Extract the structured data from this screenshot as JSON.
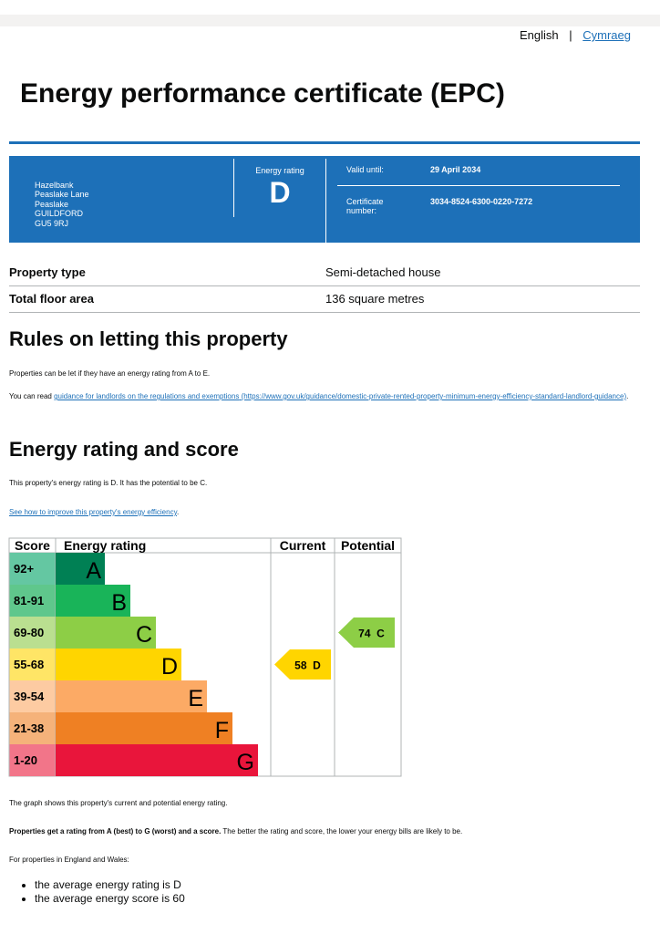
{
  "language": {
    "english": "English",
    "welsh": "Cymraeg"
  },
  "header": {
    "title": "Energy performance certificate (EPC)"
  },
  "summary": {
    "address": [
      "Hazelbank",
      "Peaslake Lane",
      "Peaslake",
      "GUILDFORD",
      "GU5 9RJ"
    ],
    "rating_label": "Energy rating",
    "rating": "D",
    "valid_label": "Valid until:",
    "valid_date": "29 April 2034",
    "cert_label": "Certificate number:",
    "cert_number": "3034-8524-6300-0220-7272"
  },
  "property": {
    "rows": [
      [
        "Property type",
        "Semi-detached house"
      ],
      [
        "Total floor area",
        "136 square metres"
      ]
    ]
  },
  "letting": {
    "heading": "Rules on letting this property",
    "para1": "Properties can be let if they have an energy rating from A to E.",
    "para2_prefix": "You can read ",
    "para2_link": "guidance for landlords on the regulations and exemptions",
    "para2_url": "(https://www.gov.uk/guidance/domestic-private-rented-property-minimum-energy-efficiency-standard-landlord-guidance)",
    "para2_end": "."
  },
  "rating_section": {
    "heading": "Energy rating and score",
    "para": "This property's energy rating is D. It has the potential to be C.",
    "link": "See how to improve this property's energy efficiency",
    "link_end": "."
  },
  "epc_chart": {
    "headers": {
      "score": "Score",
      "rating": "Energy rating",
      "current": "Current",
      "potential": "Potential"
    },
    "bands": [
      {
        "score": "92+",
        "letter": "A",
        "color": "#008054",
        "score_color": "#64c7a2"
      },
      {
        "score": "81-91",
        "letter": "B",
        "color": "#19b459",
        "score_color": "#5fc78c"
      },
      {
        "score": "69-80",
        "letter": "C",
        "color": "#8dce46",
        "score_color": "#badf90"
      },
      {
        "score": "55-68",
        "letter": "D",
        "color": "#ffd500",
        "score_color": "#ffe566"
      },
      {
        "score": "39-54",
        "letter": "E",
        "color": "#fcaa65",
        "score_color": "#fdcba2"
      },
      {
        "score": "21-38",
        "letter": "F",
        "color": "#ef8023",
        "score_color": "#f5b27a"
      },
      {
        "score": "1-20",
        "letter": "G",
        "color": "#e9153b",
        "score_color": "#f27589"
      }
    ],
    "current": {
      "score": 58,
      "letter": "D"
    },
    "potential": {
      "score": 74,
      "letter": "C"
    }
  },
  "after": {
    "graph_note": "The graph shows this property's current and potential energy rating.",
    "bold": "Properties get a rating from A (best) to G (worst) and a score.",
    "rest": " The better the rating and score, the lower your energy bills are likely to be.",
    "england": "For properties in England and Wales:",
    "bullets": [
      "the average energy rating is D",
      "the average energy score is 60"
    ]
  }
}
